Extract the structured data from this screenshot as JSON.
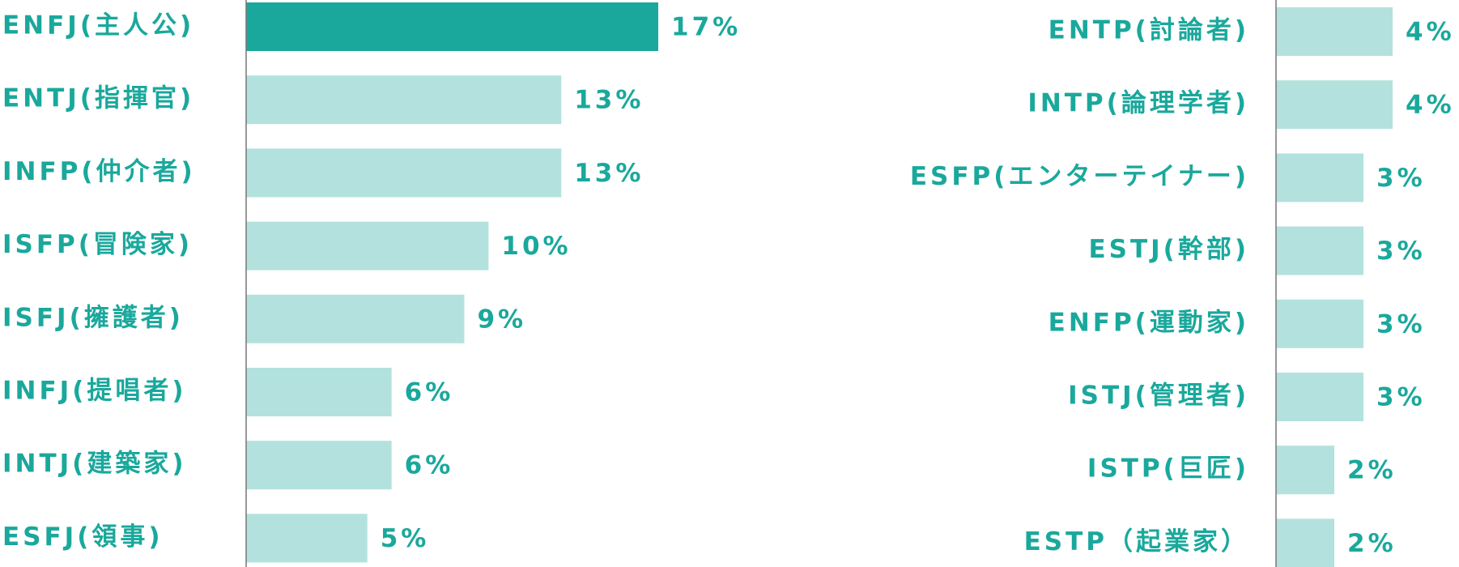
{
  "chart_data": [
    {
      "type": "bar",
      "orientation": "horizontal",
      "categories": [
        "ENFJ(主人公)",
        "ENTJ(指揮官)",
        "INFP(仲介者)",
        "ISFP(冒険家)",
        "ISFJ(擁護者)",
        "INFJ(提唱者)",
        "INTJ(建築家)",
        "ESFJ(領事)"
      ],
      "values": [
        17,
        13,
        13,
        10,
        9,
        6,
        6,
        5
      ],
      "value_labels": [
        "17%",
        "13%",
        "13%",
        "10%",
        "9%",
        "6%",
        "6%",
        "5%"
      ],
      "colors": [
        "#1aa89c",
        "#b3e2de",
        "#b3e2de",
        "#b3e2de",
        "#b3e2de",
        "#b3e2de",
        "#b3e2de",
        "#b3e2de"
      ],
      "xlim": [
        0,
        17
      ]
    },
    {
      "type": "bar",
      "orientation": "horizontal",
      "categories": [
        "ENTP(討論者)",
        "INTP(論理学者)",
        "ESFP(エンターテイナー)",
        "ESTJ(幹部)",
        "ENFP(運動家)",
        "ISTJ(管理者)",
        "ISTP(巨匠)",
        "ESTP（起業家）"
      ],
      "values": [
        4,
        4,
        3,
        3,
        3,
        3,
        2,
        2
      ],
      "value_labels": [
        "4%",
        "4%",
        "3%",
        "3%",
        "3%",
        "3%",
        "2%",
        "2%"
      ],
      "colors": [
        "#b3e2de",
        "#b3e2de",
        "#b3e2de",
        "#b3e2de",
        "#b3e2de",
        "#b3e2de",
        "#b3e2de",
        "#b3e2de"
      ],
      "xlim": [
        0,
        4
      ]
    }
  ]
}
